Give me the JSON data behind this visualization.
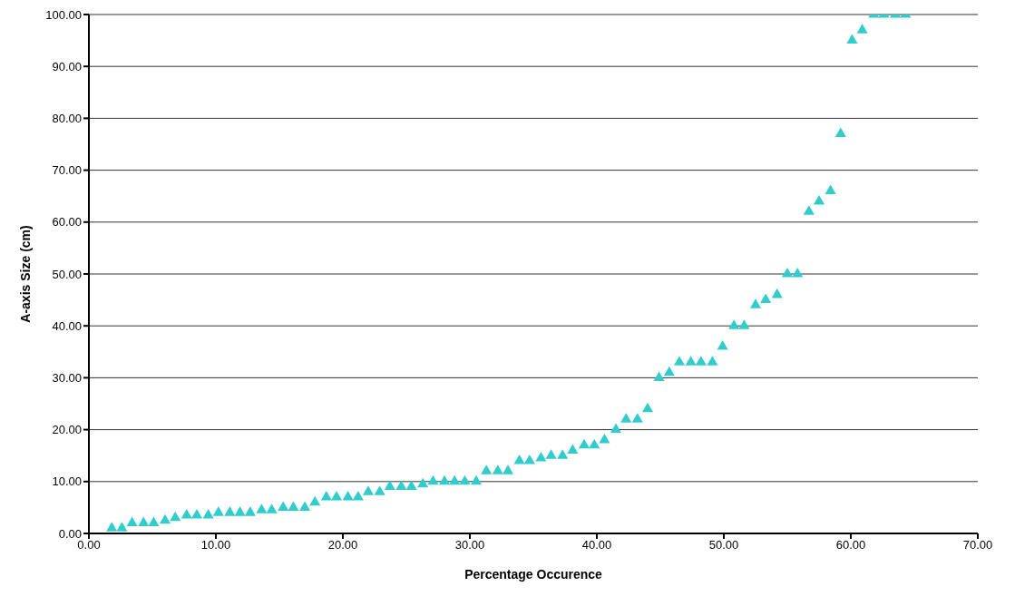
{
  "chart_data": {
    "type": "scatter",
    "xlabel": "Percentage Occurence",
    "ylabel": "A-axis Size (cm)",
    "x": [
      1.8,
      2.6,
      3.4,
      4.3,
      5.1,
      6.0,
      6.8,
      7.7,
      8.5,
      9.4,
      10.2,
      11.1,
      11.9,
      12.7,
      13.6,
      14.4,
      15.3,
      16.1,
      17.0,
      17.8,
      18.7,
      19.5,
      20.4,
      21.2,
      22.0,
      22.9,
      23.7,
      24.6,
      25.4,
      26.3,
      27.1,
      28.0,
      28.8,
      29.6,
      30.5,
      31.3,
      32.2,
      33.0,
      33.9,
      34.7,
      35.6,
      36.4,
      37.3,
      38.1,
      39.0,
      39.8,
      40.6,
      41.5,
      42.3,
      43.2,
      44.0,
      44.9,
      45.7,
      46.5,
      47.4,
      48.2,
      49.1,
      49.9,
      50.8,
      51.6,
      52.5,
      53.3,
      54.2,
      55.0,
      55.8,
      56.7,
      57.5,
      58.4,
      59.2,
      60.1,
      60.9,
      61.8,
      62.6,
      63.5,
      64.3
    ],
    "series": [
      {
        "color": "#33cccc",
        "values": [
          1,
          1,
          2,
          2,
          2,
          2.5,
          3,
          3.5,
          3.5,
          3.5,
          4,
          4,
          4,
          4,
          4.5,
          4.5,
          5,
          5,
          5,
          6,
          7,
          7,
          7,
          7,
          8,
          8,
          9,
          9,
          9,
          9.5,
          10,
          10,
          10,
          10,
          10,
          12,
          12,
          12,
          14,
          14,
          14.5,
          15,
          15,
          16,
          17,
          17,
          18,
          20,
          22,
          22,
          24,
          30,
          31,
          33,
          33,
          33,
          33,
          36,
          40,
          40,
          44,
          45,
          46,
          50,
          50,
          62,
          64,
          66,
          77,
          95,
          97,
          100,
          100,
          100,
          100
        ]
      }
    ],
    "xlim": [
      0,
      70
    ],
    "xticks": [
      {
        "value": 0,
        "label": "0.00"
      },
      {
        "value": 10,
        "label": "10.00"
      },
      {
        "value": 20,
        "label": "20.00"
      },
      {
        "value": 30,
        "label": "30.00"
      },
      {
        "value": 40,
        "label": "40.00"
      },
      {
        "value": 50,
        "label": "50.00"
      },
      {
        "value": 60,
        "label": "60.00"
      },
      {
        "value": 70,
        "label": "70.00"
      }
    ],
    "ylim": [
      0,
      100
    ],
    "yticks": [
      {
        "value": 0,
        "label": "0.00"
      },
      {
        "value": 10,
        "label": "10.00"
      },
      {
        "value": 20,
        "label": "20.00"
      },
      {
        "value": 30,
        "label": "30.00"
      },
      {
        "value": 40,
        "label": "40.00"
      },
      {
        "value": 50,
        "label": "50.00"
      },
      {
        "value": 60,
        "label": "60.00"
      },
      {
        "value": 70,
        "label": "70.00"
      },
      {
        "value": 80,
        "label": "80.00"
      },
      {
        "value": 90,
        "label": "90.00"
      },
      {
        "value": 100,
        "label": "100.00"
      }
    ],
    "grid": "y",
    "marker": "triangle"
  }
}
